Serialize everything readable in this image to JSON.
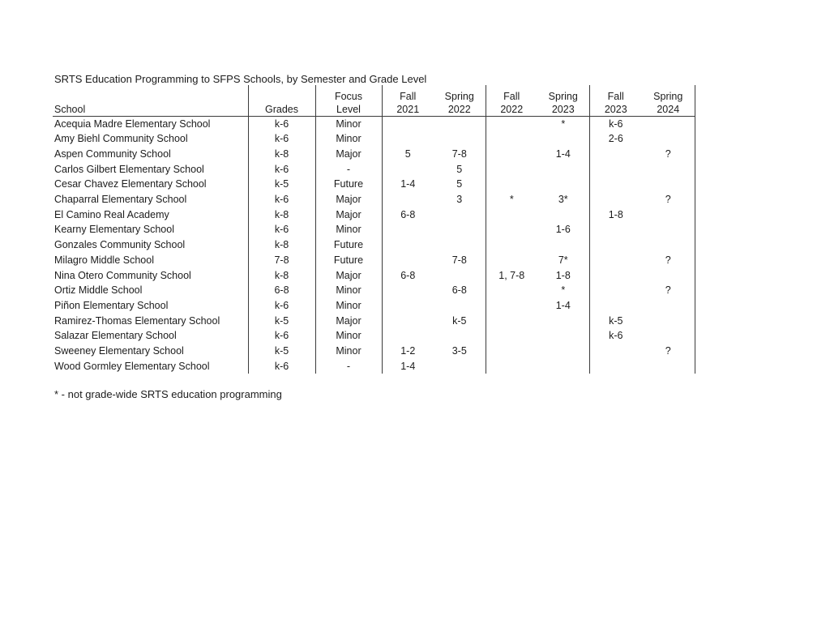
{
  "page": {
    "title": "SRTS Education Programming to SFPS Schools, by Semester and Grade Level",
    "footnote": "* - not grade-wide SRTS education programming"
  },
  "table": {
    "columns": [
      {
        "id": "school",
        "line1": "",
        "line2": "School"
      },
      {
        "id": "grades",
        "line1": "",
        "line2": "Grades"
      },
      {
        "id": "focus",
        "line1": "Focus",
        "line2": "Level"
      },
      {
        "id": "f21",
        "line1": "Fall",
        "line2": "2021"
      },
      {
        "id": "s22",
        "line1": "Spring",
        "line2": "2022"
      },
      {
        "id": "f22",
        "line1": "Fall",
        "line2": "2022"
      },
      {
        "id": "s23",
        "line1": "Spring",
        "line2": "2023"
      },
      {
        "id": "f23",
        "line1": "Fall",
        "line2": "2023"
      },
      {
        "id": "s24",
        "line1": "Spring",
        "line2": "2024"
      }
    ],
    "rows": [
      [
        "Acequia Madre Elementary School",
        "k-6",
        "Minor",
        "",
        "",
        "",
        "*",
        "k-6",
        ""
      ],
      [
        "Amy Biehl Community School",
        "k-6",
        "Minor",
        "",
        "",
        "",
        "",
        "2-6",
        ""
      ],
      [
        "Aspen Community School",
        "k-8",
        "Major",
        "5",
        "7-8",
        "",
        "1-4",
        "",
        "?"
      ],
      [
        "Carlos Gilbert Elementary School",
        "k-6",
        "-",
        "",
        "5",
        "",
        "",
        "",
        ""
      ],
      [
        "Cesar Chavez Elementary School",
        "k-5",
        "Future",
        "1-4",
        "5",
        "",
        "",
        "",
        ""
      ],
      [
        "Chaparral Elementary School",
        "k-6",
        "Major",
        "",
        "3",
        "*",
        "3*",
        "",
        "?"
      ],
      [
        "El Camino Real Academy",
        "k-8",
        "Major",
        "6-8",
        "",
        "",
        "",
        "1-8",
        ""
      ],
      [
        "Kearny Elementary School",
        "k-6",
        "Minor",
        "",
        "",
        "",
        "1-6",
        "",
        ""
      ],
      [
        "Gonzales Community School",
        "k-8",
        "Future",
        "",
        "",
        "",
        "",
        "",
        ""
      ],
      [
        "Milagro Middle School",
        "7-8",
        "Future",
        "",
        "7-8",
        "",
        "7*",
        "",
        "?"
      ],
      [
        "Nina Otero Community School",
        "k-8",
        "Major",
        "6-8",
        "",
        "1, 7-8",
        "1-8",
        "",
        ""
      ],
      [
        "Ortiz Middle School",
        "6-8",
        "Minor",
        "",
        "6-8",
        "",
        "*",
        "",
        "?"
      ],
      [
        "Piñon Elementary School",
        "k-6",
        "Minor",
        "",
        "",
        "",
        "1-4",
        "",
        ""
      ],
      [
        "Ramirez-Thomas Elementary School",
        "k-5",
        "Major",
        "",
        "k-5",
        "",
        "",
        "k-5",
        ""
      ],
      [
        "Salazar Elementary School",
        "k-6",
        "Minor",
        "",
        "",
        "",
        "",
        "k-6",
        ""
      ],
      [
        "Sweeney Elementary School",
        "k-5",
        "Minor",
        "1-2",
        "3-5",
        "",
        "",
        "",
        "?"
      ],
      [
        "Wood Gormley Elementary School",
        "k-6",
        "-",
        "1-4",
        "",
        "",
        "",
        "",
        ""
      ]
    ]
  }
}
